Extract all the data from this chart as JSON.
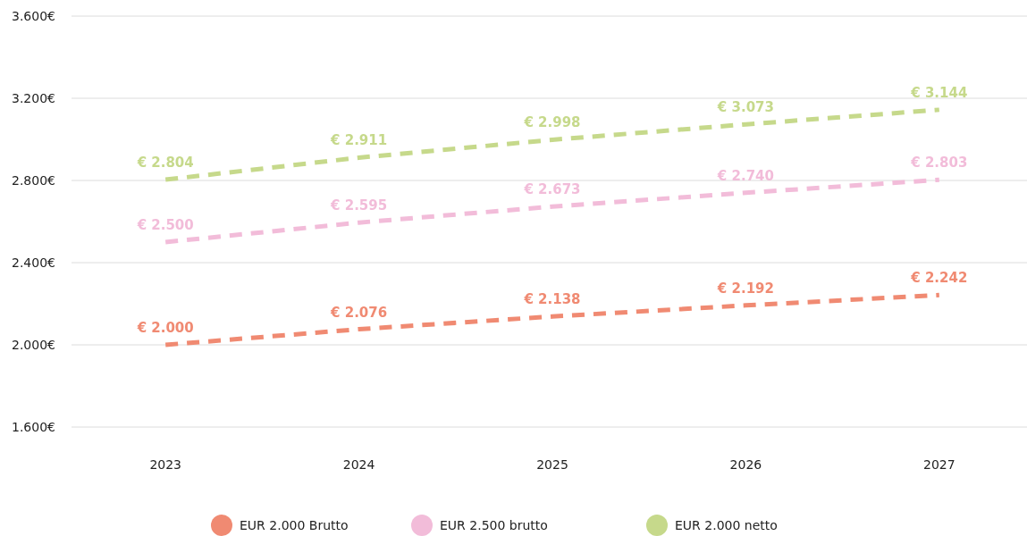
{
  "chart_data": {
    "type": "line",
    "categories": [
      "2023",
      "2024",
      "2025",
      "2026",
      "2027"
    ],
    "ylim": [
      1600,
      3600
    ],
    "yticks": [
      {
        "value": 1600,
        "label": "1.600€"
      },
      {
        "value": 2000,
        "label": "2.000€"
      },
      {
        "value": 2400,
        "label": "2.400€"
      },
      {
        "value": 2800,
        "label": "2.800€"
      },
      {
        "value": 3200,
        "label": "3.200€"
      },
      {
        "value": 3600,
        "label": "3.600€"
      }
    ],
    "grid": "y",
    "legend": "bottom",
    "line_style": "dashed",
    "marker": "none",
    "series": [
      {
        "name": "EUR 2.000 Brutto",
        "color": "#f08a72",
        "values": [
          2000,
          2076,
          2138,
          2192,
          2242
        ],
        "value_labels": [
          "€ 2.000",
          "€ 2.076",
          "€ 2.138",
          "€ 2.192",
          "€ 2.242"
        ]
      },
      {
        "name": "EUR 2.500 brutto",
        "color": "#f2bcd9",
        "values": [
          2500,
          2595,
          2673,
          2740,
          2803
        ],
        "value_labels": [
          "€ 2.500",
          "€ 2.595",
          "€ 2.673",
          "€ 2.740",
          "€ 2.803"
        ]
      },
      {
        "name": "EUR 2.000 netto",
        "color": "#c6d98b",
        "values": [
          2804,
          2911,
          2998,
          3073,
          3144
        ],
        "value_labels": [
          "€ 2.804",
          "€ 2.911",
          "€ 2.998",
          "€ 3.073",
          "€ 3.144"
        ]
      }
    ]
  }
}
